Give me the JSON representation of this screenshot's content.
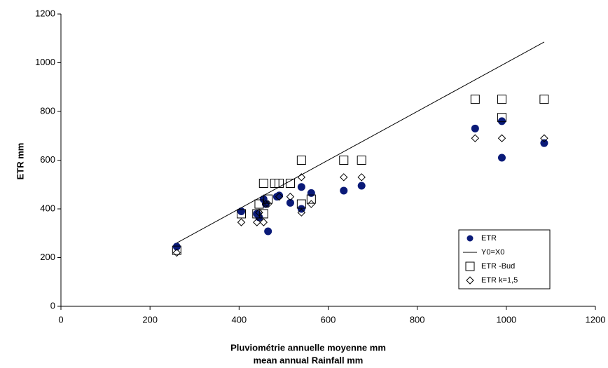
{
  "chart_data": {
    "type": "scatter",
    "xlabel": [
      "Pluviométrie annuelle moyenne mm",
      "mean annual Rainfall mm"
    ],
    "ylabel": "ETR mm",
    "xlim": [
      0,
      1200
    ],
    "xticks": [
      0,
      200,
      400,
      600,
      800,
      1000,
      1200
    ],
    "ylim": [
      0,
      1200
    ],
    "yticks": [
      0,
      200,
      400,
      600,
      800,
      1000,
      1200
    ],
    "grid": false,
    "legend": "lower right",
    "series": [
      {
        "name": "ETR",
        "color": "#0a1a78",
        "marker": "circle",
        "x": [
          260,
          405,
          440,
          445,
          455,
          460,
          465,
          485,
          490,
          515,
          540,
          540,
          562,
          635,
          675,
          930,
          990,
          990,
          1085
        ],
        "values": [
          245,
          390,
          380,
          365,
          440,
          420,
          308,
          450,
          455,
          425,
          490,
          400,
          465,
          475,
          495,
          730,
          760,
          610,
          670
        ]
      },
      {
        "name": "Y0=X0",
        "color": "#000000",
        "marker": "line",
        "x": [
          260,
          1085
        ],
        "values": [
          260,
          1085
        ]
      },
      {
        "name": "ETR -Bud",
        "color": "#000000",
        "marker": "square",
        "x": [
          260,
          405,
          440,
          445,
          455,
          455,
          465,
          480,
          490,
          515,
          540,
          540,
          562,
          635,
          675,
          930,
          990,
          990,
          1085
        ],
        "values": [
          230,
          380,
          380,
          420,
          380,
          505,
          440,
          505,
          505,
          505,
          600,
          420,
          440,
          600,
          600,
          850,
          850,
          775,
          850
        ]
      },
      {
        "name": "ETR k=1,5",
        "color": "#000000",
        "marker": "diamond",
        "x": [
          260,
          405,
          440,
          445,
          455,
          460,
          465,
          490,
          515,
          540,
          540,
          562,
          635,
          675,
          930,
          990,
          1085
        ],
        "values": [
          220,
          345,
          345,
          385,
          345,
          420,
          420,
          450,
          450,
          530,
          385,
          420,
          530,
          530,
          690,
          690,
          690
        ]
      }
    ]
  }
}
